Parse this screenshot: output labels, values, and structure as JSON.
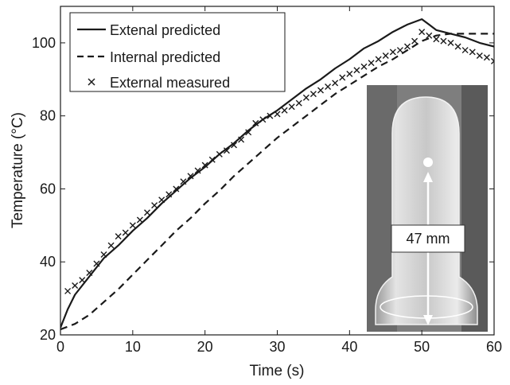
{
  "chart_data": {
    "type": "line",
    "title": "",
    "xlabel": "Time (s)",
    "ylabel": "Temperature (°C)",
    "xlim": [
      0,
      60
    ],
    "ylim": [
      20,
      110
    ],
    "xticks": [
      0,
      10,
      20,
      30,
      40,
      50,
      60
    ],
    "yticks": [
      20,
      40,
      60,
      80,
      100
    ],
    "grid": false,
    "legend_position": "top-left",
    "series": [
      {
        "name": "Extenal predicted",
        "style": "solid",
        "color": "#1a1a1a",
        "x": [
          0,
          1,
          2,
          4,
          6,
          8,
          10,
          12,
          14,
          16,
          18,
          20,
          22,
          24,
          26,
          28,
          30,
          32,
          34,
          36,
          38,
          40,
          42,
          44,
          46,
          48,
          50,
          51,
          52,
          54,
          56,
          58,
          60
        ],
        "y": [
          22,
          27,
          31,
          36,
          41,
          44.5,
          48.5,
          52,
          56,
          59.5,
          63,
          66,
          69.5,
          72.5,
          76,
          79,
          81.5,
          84.5,
          87.5,
          90,
          93,
          95.5,
          98.5,
          100.5,
          103,
          105,
          106.5,
          105,
          103.5,
          102.5,
          101.5,
          100,
          99
        ]
      },
      {
        "name": "Internal predicted",
        "style": "dashed",
        "color": "#1a1a1a",
        "x": [
          0,
          2,
          4,
          6,
          8,
          10,
          12,
          14,
          16,
          18,
          20,
          22,
          24,
          26,
          28,
          30,
          32,
          34,
          36,
          38,
          40,
          42,
          44,
          46,
          48,
          50,
          52,
          54,
          56,
          58,
          60
        ],
        "y": [
          21.5,
          23,
          25.5,
          29,
          32.5,
          36.5,
          40.5,
          44.5,
          48.5,
          52,
          56,
          59.5,
          63.5,
          67,
          70.5,
          74,
          77,
          80,
          83,
          86,
          88.5,
          91,
          93.5,
          95.5,
          98,
          100.5,
          102,
          102.5,
          102.5,
          102.5,
          102.5
        ]
      },
      {
        "name": "External measured",
        "style": "markers",
        "marker": "x",
        "color": "#1a1a1a",
        "x": [
          1,
          2,
          3,
          4,
          5,
          6,
          7,
          8,
          9,
          10,
          11,
          12,
          13,
          14,
          15,
          16,
          17,
          18,
          19,
          20,
          21,
          22,
          23,
          24,
          25,
          26,
          27,
          28,
          29,
          30,
          31,
          32,
          33,
          34,
          35,
          36,
          37,
          38,
          39,
          40,
          41,
          42,
          43,
          44,
          45,
          46,
          47,
          48,
          49,
          50,
          51,
          52,
          53,
          54,
          55,
          56,
          57,
          58,
          59,
          60
        ],
        "y": [
          32,
          33.5,
          35,
          37,
          39.5,
          42,
          44.5,
          47,
          48,
          50,
          51.5,
          53.5,
          55.5,
          57,
          58.5,
          60,
          62,
          63.5,
          65,
          66.5,
          68,
          69.5,
          70.5,
          72,
          73.5,
          75.5,
          78,
          79,
          80,
          80.5,
          81.5,
          82.5,
          83.5,
          85,
          86,
          87,
          88,
          89,
          90.5,
          91.5,
          92.5,
          93.5,
          94.5,
          95.5,
          96.5,
          97.5,
          98,
          99,
          100.5,
          103,
          102,
          101,
          100.5,
          100,
          99,
          98,
          97.5,
          96.5,
          96,
          95
        ]
      }
    ],
    "annotations": [
      {
        "text": "47 mm"
      }
    ]
  },
  "inset": {
    "description_icon": "test-tube-photo",
    "label": "47 mm",
    "colors": {
      "background": "#8a8a8a",
      "glass": "#d6d6d6",
      "arrow": "#ffffff"
    }
  }
}
